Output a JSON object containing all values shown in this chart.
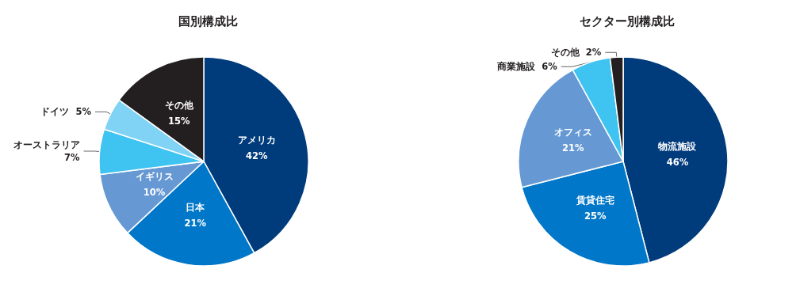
{
  "chart_data": [
    {
      "type": "pie",
      "title": "国別構成比",
      "categories": [
        "アメリカ",
        "日本",
        "イギリス",
        "オーストラリア",
        "ドイツ",
        "その他"
      ],
      "values": [
        42,
        21,
        10,
        7,
        5,
        15
      ],
      "colors": [
        "#003b7c",
        "#0077c8",
        "#6699d4",
        "#3fc3f0",
        "#80d3f5",
        "#231f20"
      ],
      "value_labels": [
        "42%",
        "21%",
        "10%",
        "7%",
        "5%",
        "15%"
      ]
    },
    {
      "type": "pie",
      "title": "セクター別構成比",
      "categories": [
        "物流施設",
        "賃貸住宅",
        "オフィス",
        "商業施設",
        "その他"
      ],
      "values": [
        46,
        25,
        21,
        6,
        2
      ],
      "colors": [
        "#003b7c",
        "#0077c8",
        "#6699d4",
        "#3fc3f0",
        "#231f20"
      ],
      "value_labels": [
        "46%",
        "25%",
        "21%",
        "6%",
        "2%"
      ]
    }
  ]
}
